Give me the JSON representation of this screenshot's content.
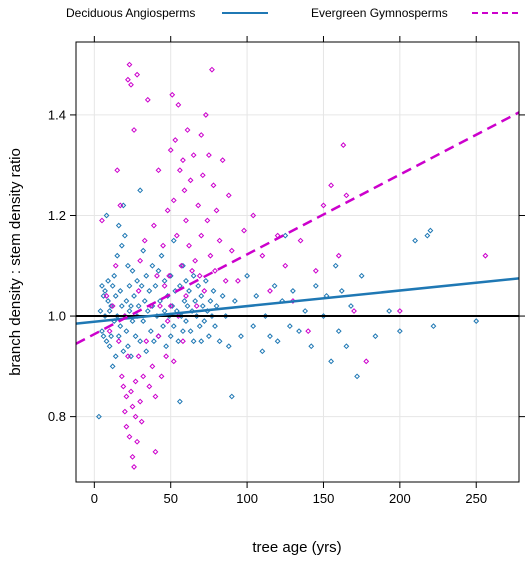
{
  "chart_data": {
    "type": "scatter",
    "xlabel": "tree age (yrs)",
    "ylabel": "branch density : stem density ratio",
    "xlim": [
      -12,
      278
    ],
    "ylim": [
      0.67,
      1.545
    ],
    "x_ticks": [
      0,
      50,
      100,
      150,
      200,
      250
    ],
    "y_ticks": [
      0.8,
      1.0,
      1.2,
      1.4
    ],
    "grid": true,
    "legend_position": "top",
    "reference_line": {
      "y": 1.0,
      "color": "#000000"
    },
    "series": [
      {
        "name": "Deciduous Angiosperms",
        "color": "#1f78b4",
        "line_style": "solid",
        "fit": {
          "x": [
            -12,
            278
          ],
          "y": [
            0.985,
            1.075
          ]
        },
        "points": [
          [
            3,
            0.8
          ],
          [
            4,
            1.01
          ],
          [
            5,
            0.97
          ],
          [
            5,
            1.06
          ],
          [
            6,
            1.04
          ],
          [
            6,
            0.96
          ],
          [
            7,
            1.0
          ],
          [
            7,
            1.05
          ],
          [
            8,
            1.2
          ],
          [
            8,
            0.95
          ],
          [
            9,
            1.03
          ],
          [
            9,
            1.07
          ],
          [
            10,
            1.01
          ],
          [
            10,
            0.94
          ],
          [
            11,
            0.96
          ],
          [
            11,
            1.02
          ],
          [
            12,
            1.06
          ],
          [
            12,
            0.9
          ],
          [
            13,
            1.08
          ],
          [
            13,
            0.99
          ],
          [
            14,
            1.04
          ],
          [
            14,
            0.92
          ],
          [
            15,
            1.12
          ],
          [
            15,
            1.0
          ],
          [
            16,
            1.18
          ],
          [
            16,
            0.96
          ],
          [
            17,
            1.05
          ],
          [
            17,
            0.98
          ],
          [
            18,
            1.14
          ],
          [
            18,
            1.02
          ],
          [
            19,
            1.22
          ],
          [
            19,
            0.93
          ],
          [
            20,
            1.16
          ],
          [
            20,
            1.0
          ],
          [
            21,
            1.03
          ],
          [
            21,
            0.97
          ],
          [
            22,
            1.1
          ],
          [
            22,
            0.94
          ],
          [
            23,
            1.06
          ],
          [
            23,
            1.01
          ],
          [
            24,
            1.02
          ],
          [
            24,
            0.92
          ],
          [
            25,
            1.09
          ],
          [
            25,
            0.99
          ],
          [
            26,
            1.04
          ],
          [
            27,
            0.96
          ],
          [
            28,
            1.07
          ],
          [
            28,
            1.0
          ],
          [
            29,
            1.02
          ],
          [
            30,
            1.25
          ],
          [
            30,
            0.95
          ],
          [
            31,
            1.06
          ],
          [
            32,
            1.13
          ],
          [
            32,
            0.99
          ],
          [
            33,
            1.03
          ],
          [
            34,
            1.08
          ],
          [
            34,
            0.93
          ],
          [
            35,
            1.01
          ],
          [
            36,
            1.05
          ],
          [
            37,
            0.97
          ],
          [
            38,
            1.1
          ],
          [
            38,
            1.02
          ],
          [
            39,
            0.95
          ],
          [
            40,
            1.06
          ],
          [
            41,
            1.0
          ],
          [
            42,
            1.09
          ],
          [
            42,
            0.96
          ],
          [
            43,
            1.03
          ],
          [
            44,
            1.12
          ],
          [
            45,
            0.98
          ],
          [
            46,
            1.07
          ],
          [
            46,
            1.01
          ],
          [
            47,
            0.94
          ],
          [
            48,
            1.04
          ],
          [
            49,
            1.0
          ],
          [
            50,
            1.08
          ],
          [
            50,
            0.96
          ],
          [
            51,
            1.02
          ],
          [
            52,
            1.15
          ],
          [
            52,
            0.98
          ],
          [
            53,
            1.05
          ],
          [
            54,
            1.01
          ],
          [
            55,
            0.95
          ],
          [
            56,
            0.83
          ],
          [
            56,
            1.06
          ],
          [
            57,
            1.0
          ],
          [
            58,
            1.1
          ],
          [
            58,
            0.97
          ],
          [
            59,
            1.03
          ],
          [
            60,
            1.07
          ],
          [
            60,
            0.99
          ],
          [
            61,
            1.02
          ],
          [
            62,
            1.05
          ],
          [
            63,
            0.97
          ],
          [
            64,
            1.01
          ],
          [
            65,
            1.08
          ],
          [
            65,
            0.95
          ],
          [
            66,
            1.03
          ],
          [
            67,
            1.0
          ],
          [
            68,
            1.06
          ],
          [
            69,
            0.98
          ],
          [
            70,
            1.04
          ],
          [
            70,
            0.95
          ],
          [
            71,
            1.02
          ],
          [
            72,
            0.99
          ],
          [
            73,
            1.07
          ],
          [
            74,
            1.01
          ],
          [
            75,
            0.96
          ],
          [
            76,
            1.03
          ],
          [
            77,
            1.0
          ],
          [
            78,
            1.05
          ],
          [
            79,
            0.98
          ],
          [
            80,
            1.02
          ],
          [
            82,
            0.95
          ],
          [
            84,
            1.04
          ],
          [
            86,
            1.0
          ],
          [
            88,
            0.94
          ],
          [
            90,
            0.84
          ],
          [
            92,
            1.03
          ],
          [
            96,
            0.96
          ],
          [
            100,
            1.08
          ],
          [
            104,
            0.98
          ],
          [
            106,
            1.04
          ],
          [
            110,
            0.93
          ],
          [
            112,
            1.0
          ],
          [
            115,
            0.96
          ],
          [
            118,
            1.06
          ],
          [
            120,
            0.95
          ],
          [
            123,
            1.03
          ],
          [
            125,
            1.16
          ],
          [
            128,
            0.98
          ],
          [
            130,
            1.05
          ],
          [
            134,
            0.97
          ],
          [
            138,
            1.01
          ],
          [
            142,
            0.94
          ],
          [
            145,
            1.06
          ],
          [
            150,
            1.0
          ],
          [
            152,
            1.04
          ],
          [
            155,
            0.91
          ],
          [
            158,
            1.1
          ],
          [
            160,
            0.97
          ],
          [
            162,
            1.05
          ],
          [
            165,
            0.94
          ],
          [
            168,
            1.02
          ],
          [
            172,
            0.88
          ],
          [
            175,
            1.08
          ],
          [
            184,
            0.96
          ],
          [
            193,
            1.01
          ],
          [
            200,
            0.97
          ],
          [
            210,
            1.15
          ],
          [
            218,
            1.16
          ],
          [
            220,
            1.17
          ],
          [
            222,
            0.98
          ],
          [
            250,
            0.99
          ]
        ]
      },
      {
        "name": "Evergreen Gymnosperms",
        "color": "#cc00cc",
        "line_style": "dashed",
        "fit": {
          "x": [
            -12,
            278
          ],
          "y": [
            0.945,
            1.405
          ]
        },
        "points": [
          [
            5,
            1.19
          ],
          [
            8,
            1.04
          ],
          [
            10,
            0.97
          ],
          [
            12,
            1.02
          ],
          [
            14,
            1.1
          ],
          [
            15,
            1.29
          ],
          [
            16,
            0.95
          ],
          [
            17,
            1.22
          ],
          [
            18,
            0.88
          ],
          [
            19,
            0.86
          ],
          [
            20,
            0.81
          ],
          [
            20,
            1.0
          ],
          [
            21,
            0.84
          ],
          [
            21,
            0.78
          ],
          [
            22,
            1.47
          ],
          [
            22,
            0.92
          ],
          [
            23,
            1.5
          ],
          [
            23,
            0.76
          ],
          [
            24,
            0.85
          ],
          [
            24,
            1.46
          ],
          [
            25,
            0.82
          ],
          [
            25,
            0.72
          ],
          [
            26,
            1.37
          ],
          [
            26,
            0.7
          ],
          [
            27,
            0.8
          ],
          [
            27,
            0.87
          ],
          [
            28,
            1.48
          ],
          [
            28,
            0.75
          ],
          [
            29,
            1.05
          ],
          [
            29,
            0.92
          ],
          [
            30,
            0.83
          ],
          [
            30,
            1.11
          ],
          [
            31,
            0.79
          ],
          [
            32,
            0.88
          ],
          [
            33,
            1.15
          ],
          [
            34,
            0.95
          ],
          [
            35,
            1.43
          ],
          [
            36,
            0.86
          ],
          [
            37,
            1.02
          ],
          [
            38,
            0.9
          ],
          [
            39,
            1.18
          ],
          [
            40,
            0.73
          ],
          [
            40,
            0.84
          ],
          [
            41,
            1.08
          ],
          [
            42,
            1.29
          ],
          [
            42,
            0.96
          ],
          [
            43,
            1.02
          ],
          [
            44,
            0.88
          ],
          [
            45,
            1.14
          ],
          [
            46,
            1.06
          ],
          [
            47,
            0.92
          ],
          [
            48,
            1.21
          ],
          [
            48,
            0.99
          ],
          [
            49,
            1.08
          ],
          [
            50,
            1.33
          ],
          [
            50,
            1.02
          ],
          [
            51,
            1.44
          ],
          [
            52,
            1.23
          ],
          [
            52,
            0.91
          ],
          [
            53,
            1.35
          ],
          [
            54,
            1.16
          ],
          [
            55,
            1.42
          ],
          [
            55,
            1.0
          ],
          [
            56,
            1.29
          ],
          [
            57,
            1.1
          ],
          [
            58,
            1.31
          ],
          [
            58,
            0.95
          ],
          [
            59,
            1.25
          ],
          [
            60,
            1.19
          ],
          [
            60,
            1.04
          ],
          [
            61,
            1.37
          ],
          [
            62,
            1.14
          ],
          [
            63,
            1.27
          ],
          [
            64,
            1.09
          ],
          [
            65,
            1.32
          ],
          [
            66,
            1.11
          ],
          [
            67,
            1.02
          ],
          [
            68,
            1.22
          ],
          [
            69,
            1.08
          ],
          [
            70,
            1.36
          ],
          [
            70,
            1.16
          ],
          [
            71,
            1.28
          ],
          [
            72,
            1.05
          ],
          [
            73,
            1.4
          ],
          [
            74,
            1.19
          ],
          [
            75,
            1.32
          ],
          [
            76,
            1.12
          ],
          [
            77,
            1.49
          ],
          [
            78,
            1.26
          ],
          [
            79,
            1.09
          ],
          [
            80,
            1.21
          ],
          [
            82,
            1.15
          ],
          [
            84,
            1.31
          ],
          [
            86,
            1.07
          ],
          [
            88,
            1.24
          ],
          [
            90,
            1.13
          ],
          [
            94,
            1.07
          ],
          [
            98,
            1.17
          ],
          [
            104,
            1.2
          ],
          [
            110,
            1.12
          ],
          [
            115,
            1.05
          ],
          [
            120,
            1.16
          ],
          [
            125,
            1.1
          ],
          [
            130,
            1.03
          ],
          [
            135,
            1.15
          ],
          [
            140,
            0.97
          ],
          [
            145,
            1.09
          ],
          [
            150,
            1.22
          ],
          [
            155,
            1.26
          ],
          [
            160,
            1.12
          ],
          [
            163,
            1.34
          ],
          [
            165,
            1.24
          ],
          [
            170,
            1.01
          ],
          [
            178,
            0.91
          ],
          [
            200,
            1.01
          ],
          [
            256,
            1.12
          ]
        ]
      }
    ]
  }
}
